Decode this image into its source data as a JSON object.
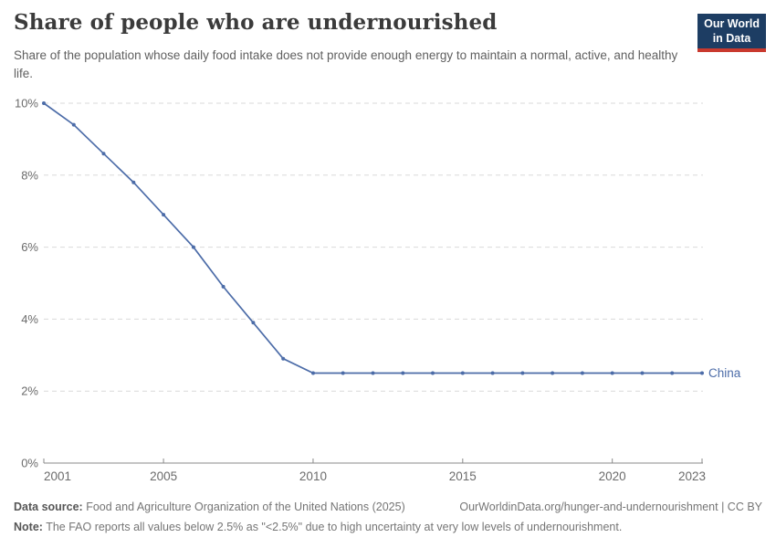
{
  "header": {
    "title": "Share of people who are undernourished",
    "subtitle": "Share of the population whose daily food intake does not provide enough energy to maintain a normal, active, and healthy life.",
    "logo": {
      "line1": "Our World",
      "line2": "in Data"
    }
  },
  "chart_data": {
    "type": "line",
    "title": "Share of people who are undernourished",
    "xlabel": "",
    "ylabel": "",
    "xlim": [
      2001,
      2023
    ],
    "ylim": [
      0,
      10
    ],
    "grid": "dashed-horizontal",
    "legend_position": "end-of-line",
    "x": [
      2001,
      2002,
      2003,
      2004,
      2005,
      2006,
      2007,
      2008,
      2009,
      2010,
      2011,
      2012,
      2013,
      2014,
      2015,
      2016,
      2017,
      2018,
      2019,
      2020,
      2021,
      2022,
      2023
    ],
    "series": [
      {
        "name": "China",
        "color": "#4C6CA8",
        "values": [
          10,
          9.4,
          8.6,
          7.8,
          6.9,
          6.0,
          4.9,
          3.9,
          2.9,
          2.5,
          2.5,
          2.5,
          2.5,
          2.5,
          2.5,
          2.5,
          2.5,
          2.5,
          2.5,
          2.5,
          2.5,
          2.5,
          2.5
        ]
      }
    ],
    "yticks": [
      {
        "value": 0,
        "label": "0%"
      },
      {
        "value": 2,
        "label": "2%"
      },
      {
        "value": 4,
        "label": "4%"
      },
      {
        "value": 6,
        "label": "6%"
      },
      {
        "value": 8,
        "label": "8%"
      },
      {
        "value": 10,
        "label": "10%"
      }
    ],
    "xticks": [
      {
        "value": 2001,
        "label": "2001"
      },
      {
        "value": 2005,
        "label": "2005"
      },
      {
        "value": 2010,
        "label": "2010"
      },
      {
        "value": 2015,
        "label": "2015"
      },
      {
        "value": 2020,
        "label": "2020"
      },
      {
        "value": 2023,
        "label": "2023"
      }
    ]
  },
  "footer": {
    "source_label": "Data source:",
    "source_text": "Food and Agriculture Organization of the United Nations (2025)",
    "link": "OurWorldinData.org/hunger-and-undernourishment | CC BY",
    "note_label": "Note:",
    "note_text": "The FAO reports all values below 2.5% as \"<2.5%\" due to high uncertainty at very low levels of undernourishment."
  },
  "colors": {
    "line": "#4C6CA8",
    "grid": "#d9d9d9",
    "axis": "#8a8a8a",
    "tick_label": "#6b6b6b",
    "logo_bg": "#1d3d63",
    "logo_red": "#c9392e"
  }
}
